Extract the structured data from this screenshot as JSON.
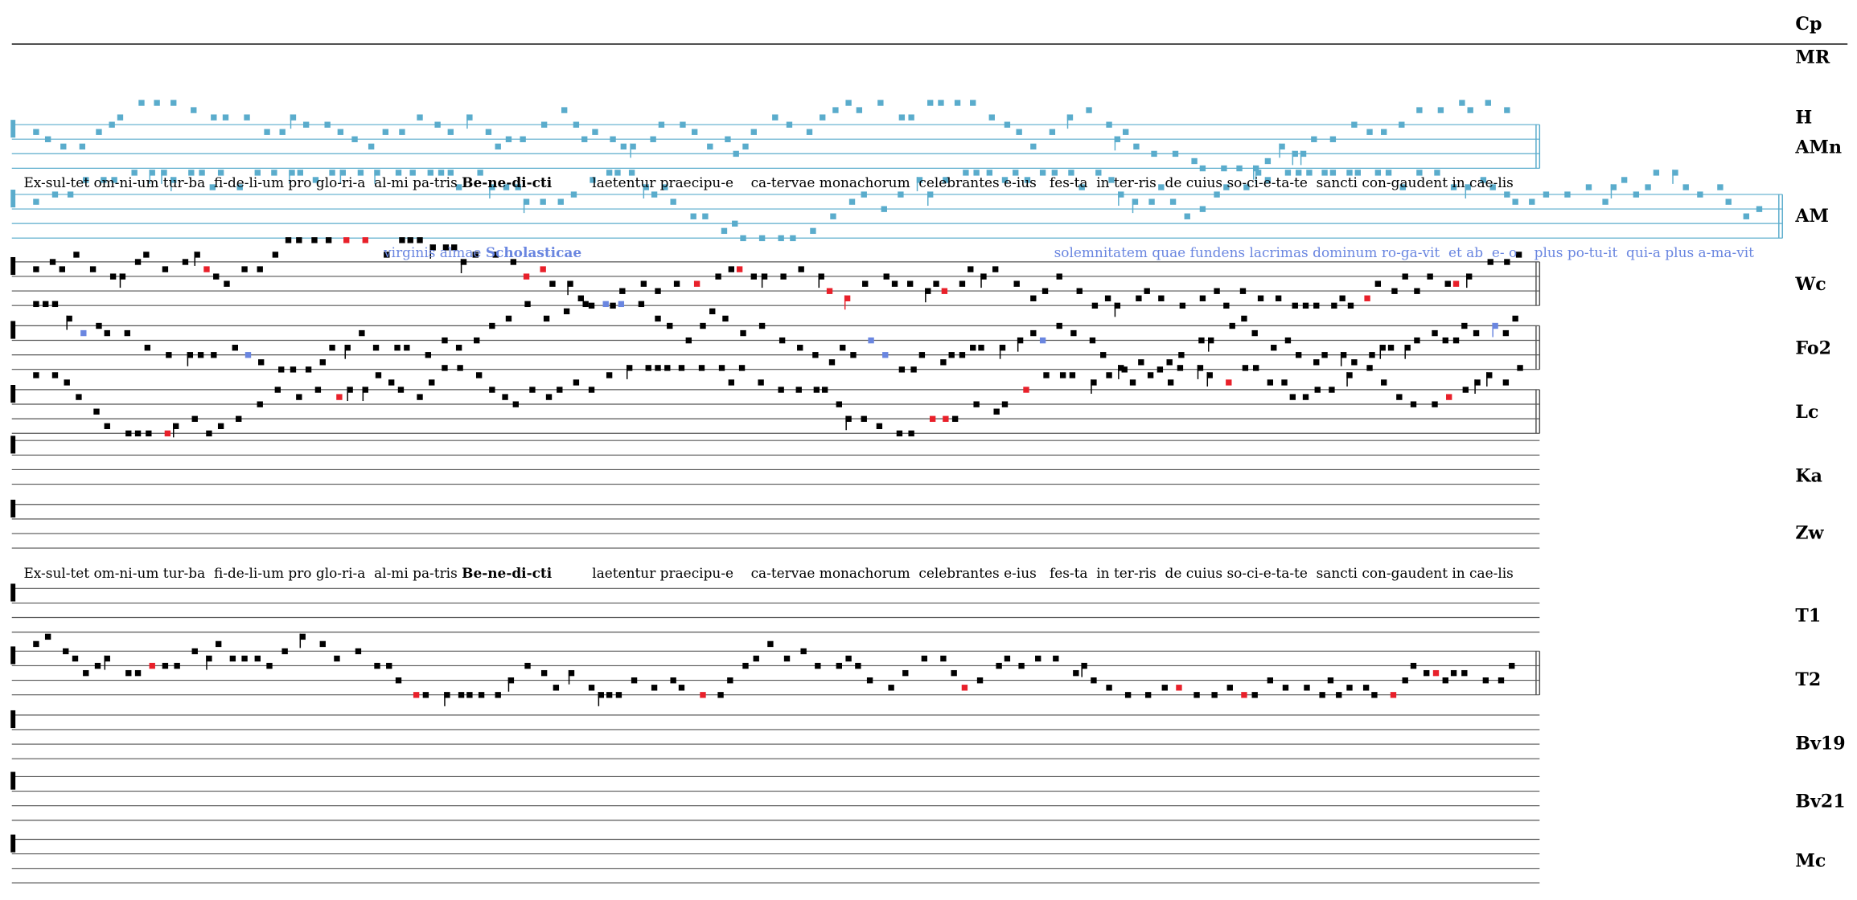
{
  "sigla": [
    "Cp",
    "MR",
    "H",
    "AMn",
    "AM",
    "Wc",
    "Fo2",
    "Lc",
    "Ka",
    "Zw",
    "T1",
    "T2",
    "Bv19",
    "Bv21",
    "Mc"
  ],
  "lyrics": [
    {
      "before": "Ex-sul-tet om-ni-um tur-ba  fi-de-li-um pro glo-ri-a  al-mi pa-tris ",
      "bold": "Be-ne-di-cti",
      "after": "laetentur praecipu-e    ca-tervae monachorum  celebrantes e-ius   fes-ta  in ter-ris  de cuius so-ci-e-ta-te  sancti con-gaudent in cae-lis"
    },
    {
      "before": "virginis almae ",
      "bold": "Scholasticae",
      "after": "solemnitatem quae fundens lacrimas dominum ro-ga-vit  et ab  e- o    plus po-tu-it  qui-a plus a-ma-vit"
    },
    {
      "before": "Ex-sul-tet om-ni-um tur-ba  fi-de-li-um pro glo-ri-a  al-mi pa-tris ",
      "bold": "Be-ne-di-cti",
      "after": "laetentur praecipu-e    ca-tervae monachorum  celebrantes e-ius   fes-ta  in ter-ris  de cuius so-ci-e-ta-te  sancti con-gaudent in cae-lis"
    }
  ]
}
